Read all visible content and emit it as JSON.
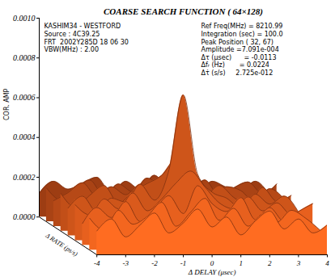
{
  "chart_data": {
    "type": "surface",
    "title": "COARSE SEARCH FUNCTION ( 64×128)",
    "info_left": [
      "KASHIM34 - WESTFORD",
      "Source : 4C39.25",
      "FRT  2002Y285D 18 06 30",
      "VBW(MHz) : 2.00"
    ],
    "info_right": [
      "Ref Freq(MHz) = 8210.99",
      "Integration (sec) = 100.0",
      "Peak Position ( 32, 67)",
      "Amplitude =7.091e-004",
      "Δτ (μsec)      = -0.0113",
      "Δfᵣ (Hz)       = 0.0224",
      "Δτ̇ (s/s)     2.725e-012"
    ],
    "xlabel": "Δ DELAY (μsec)",
    "ylabel": "COR. AMP",
    "rate_label": "Δ RATE (ps/s)",
    "x": [
      -4,
      -3.5,
      -3,
      -2.5,
      -2,
      -1.5,
      -1,
      -0.5,
      0,
      0.5,
      1,
      1.5,
      2,
      2.5,
      3,
      3.5,
      4
    ],
    "xlim": [
      -4,
      4
    ],
    "xticks": [
      -4,
      -3,
      -2,
      -1,
      0,
      1,
      2,
      3,
      4
    ],
    "ylim": [
      0,
      0.001
    ],
    "yticks": [
      {
        "value": 0,
        "label": "0.0000"
      },
      {
        "value": 0.0002,
        "label": "0.0002"
      },
      {
        "value": 0.0004,
        "label": "0.0004"
      },
      {
        "value": 0.0006,
        "label": "0.0006"
      },
      {
        "value": 0.0008,
        "label": "0.0008"
      },
      {
        "value": 0.001,
        "label": "0.0010"
      }
    ],
    "color": "#d9541a",
    "surface": [
      [
        0.00012,
        0.00018,
        9e-05,
        0.00015,
        0.00021,
        0.00011,
        0.00016,
        0.00023,
        0.00014,
        0.00019,
        0.0001,
        0.00017,
        0.00022,
        0.00013,
        0.00018,
        0.00011,
        0.00015
      ],
      [
        0.00016,
        0.0001,
        0.0002,
        0.00013,
        0.00017,
        0.00024,
        0.00012,
        0.00019,
        0.00026,
        0.00015,
        0.00021,
        0.00012,
        0.00018,
        0.00014,
        0.0002,
        0.00016,
        0.0001
      ],
      [
        0.00011,
        0.00019,
        0.00014,
        0.00022,
        0.00012,
        0.00018,
        0.00025,
        0.00016,
        0.0003,
        0.00021,
        0.00017,
        0.00024,
        0.00013,
        0.00019,
        0.00012,
        0.00017,
        0.00021
      ],
      [
        0.00018,
        0.00013,
        0.00021,
        0.00016,
        0.00024,
        0.00015,
        0.00021,
        0.00029,
        0.00035,
        0.00027,
        0.00019,
        0.00016,
        0.00022,
        0.00015,
        0.00019,
        0.00013,
        0.00016
      ],
      [
        0.00014,
        0.0002,
        0.00012,
        0.00019,
        0.00017,
        0.00026,
        0.00018,
        0.00033,
        0.000709,
        0.00031,
        0.00022,
        0.00019,
        0.00014,
        0.00021,
        0.00016,
        0.0002,
        0.00012
      ],
      [
        0.00019,
        0.00012,
        0.00018,
        0.00023,
        0.00014,
        0.0002,
        0.00024,
        0.00028,
        0.00036,
        0.00026,
        0.00018,
        0.00023,
        0.00017,
        0.00013,
        0.00022,
        0.00015,
        0.00018
      ],
      [
        0.00013,
        0.00017,
        0.00022,
        0.00015,
        0.0002,
        0.00016,
        0.00021,
        0.00017,
        0.00028,
        0.00019,
        0.00024,
        0.00014,
        0.0002,
        0.00018,
        0.00012,
        0.00019,
        0.00014
      ],
      [
        0.00017,
        0.00011,
        0.00016,
        0.00021,
        0.00013,
        0.00019,
        0.00015,
        0.00022,
        0.00018,
        0.00023,
        0.00016,
        0.00021,
        0.00013,
        0.00017,
        0.0002,
        0.00014,
        0.00019
      ],
      [
        0.00012,
        0.00018,
        0.00014,
        0.00017,
        0.0002,
        0.00012,
        0.00018,
        0.00014,
        0.00021,
        0.00015,
        0.00019,
        0.00012,
        0.00018,
        0.00015,
        0.00013,
        0.00018,
        0.00011
      ]
    ]
  }
}
